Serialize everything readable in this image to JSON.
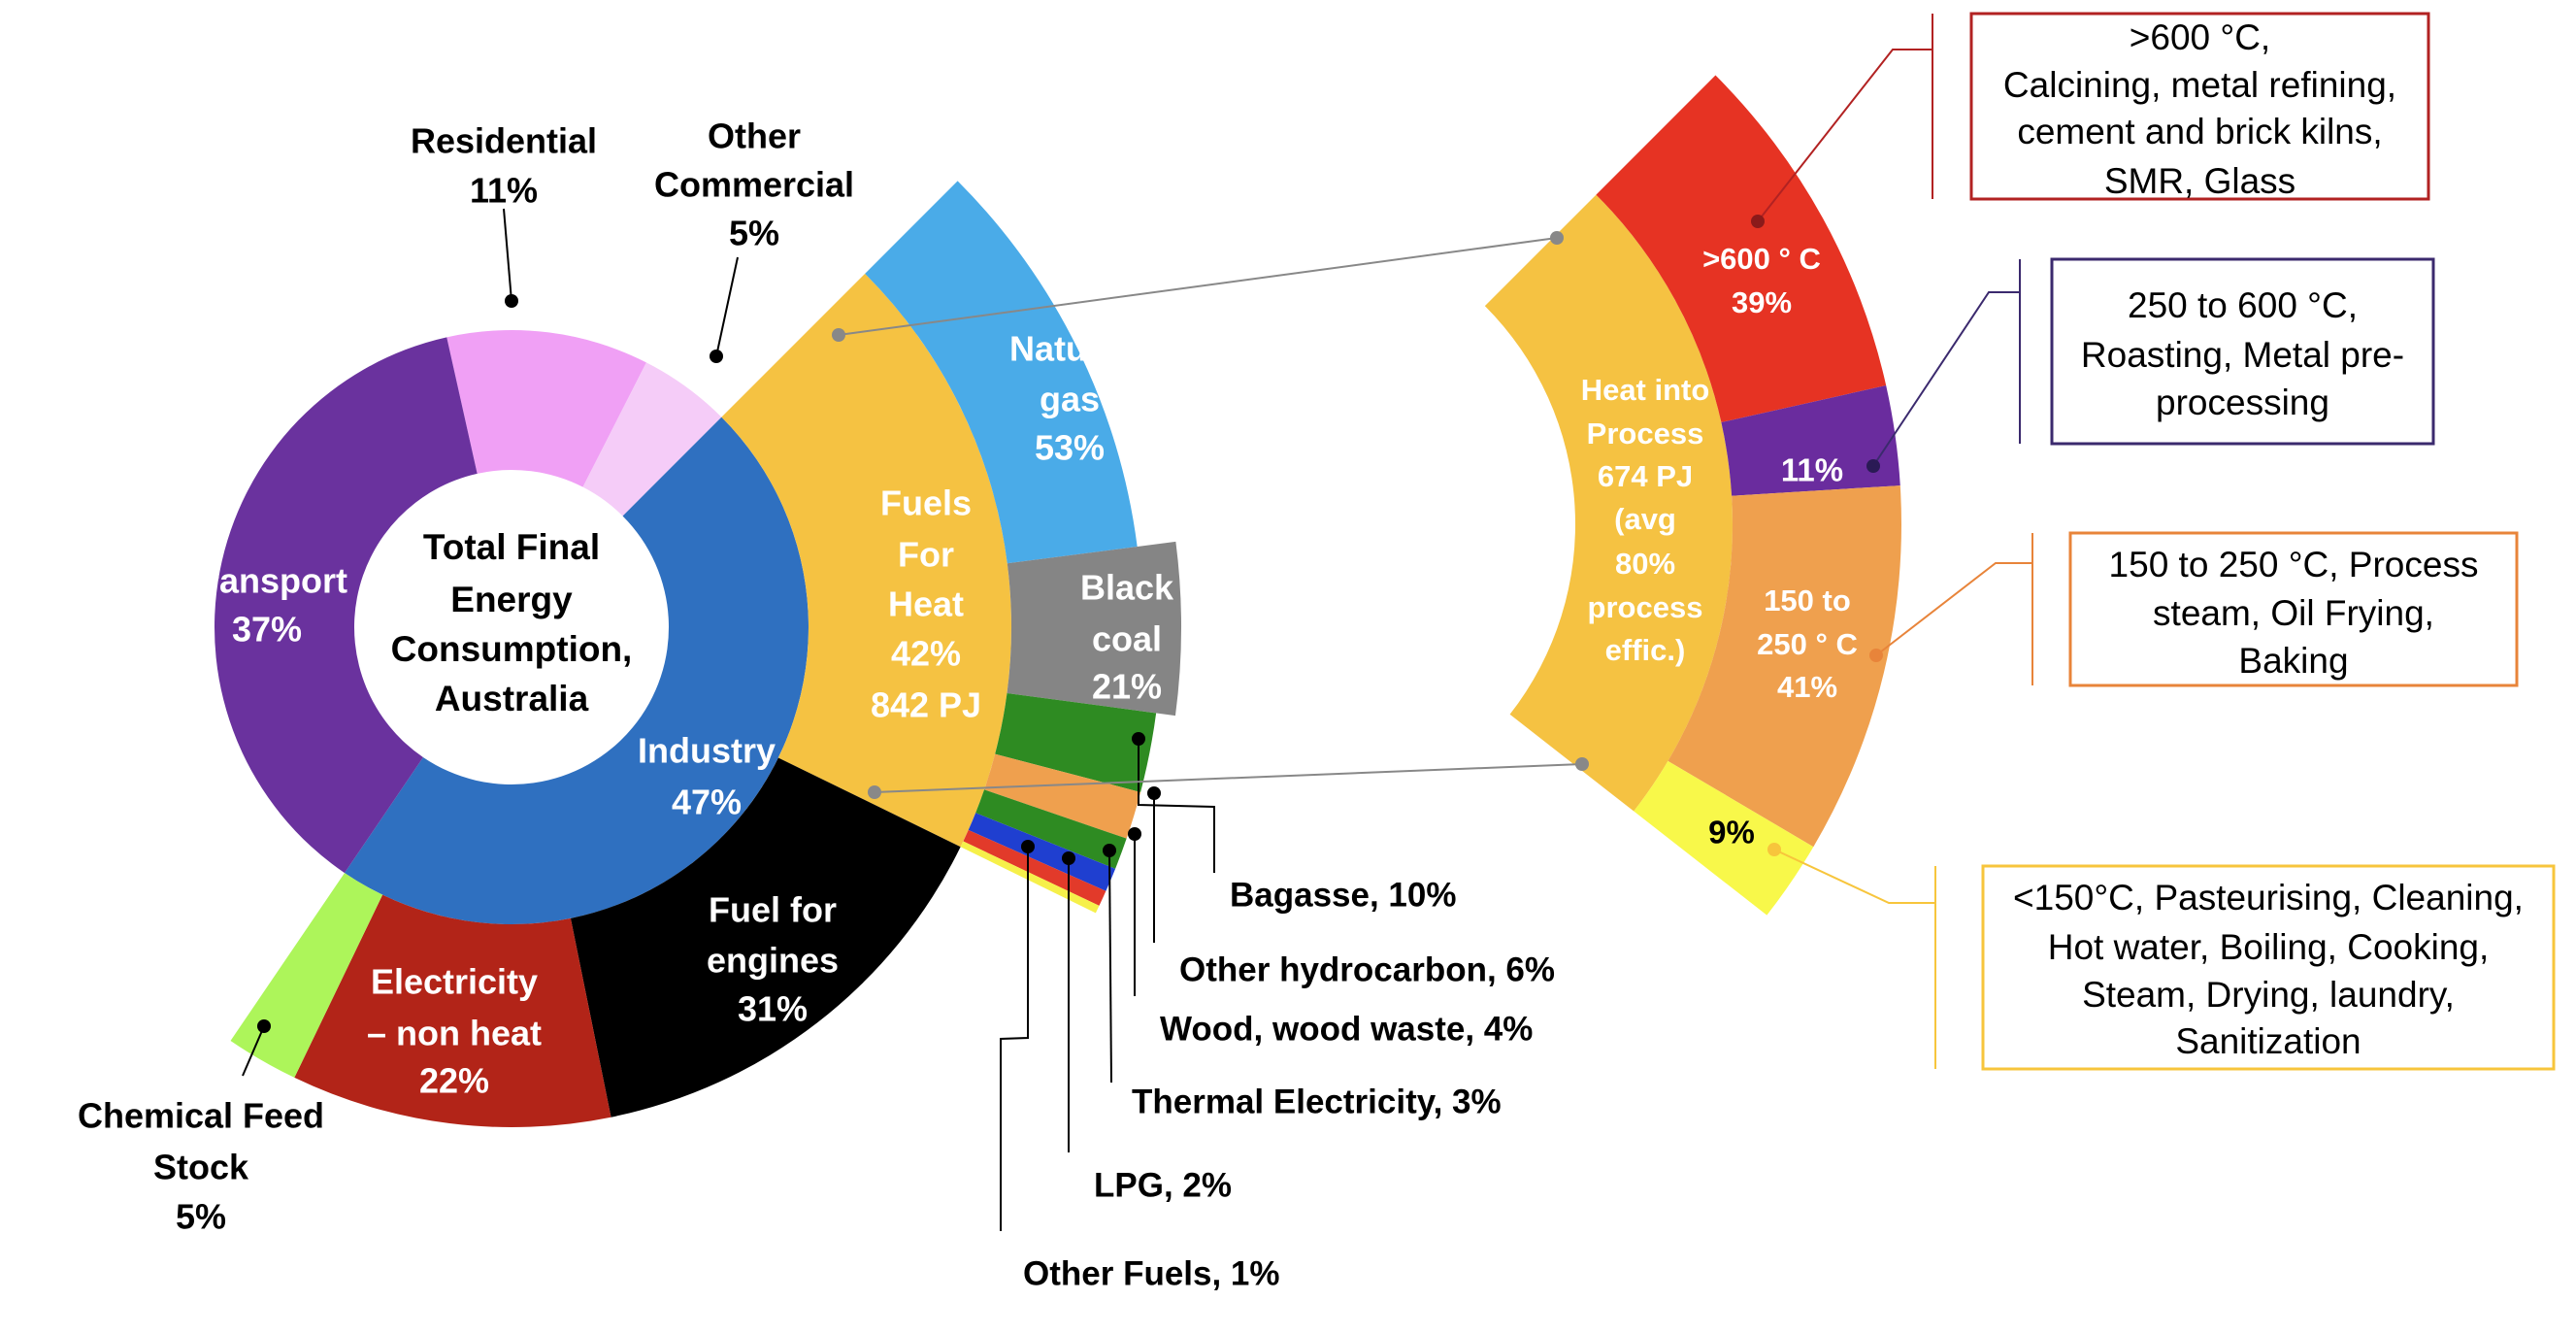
{
  "chart_data": {
    "type": "sunburst",
    "center_label": [
      "Total  Final",
      "Energy",
      "Consumption,",
      "Australia"
    ],
    "unit": "% of parent",
    "sectors": [
      {
        "name": "Residential",
        "value": 11,
        "color": "#F0A0F5",
        "label_lines": [
          "Residential",
          "11%"
        ]
      },
      {
        "name": "Other Commercial",
        "value": 5,
        "color": "#F5CCF8",
        "label_lines": [
          "Other",
          "Commercial",
          "5%"
        ]
      },
      {
        "name": "Industry",
        "value": 47,
        "color": "#2F70C0",
        "label_lines": [
          "Industry",
          "47%"
        ],
        "children": [
          {
            "name": "Fuels For Heat",
            "value": 42,
            "energy": "842 PJ",
            "color": "#F5C242",
            "label_lines": [
              "Fuels",
              "For",
              "Heat",
              "42%",
              "842 PJ"
            ],
            "children": [
              {
                "name": "Natural gas",
                "value": 53,
                "color": "#4AABE8",
                "label_lines": [
                  "Natural",
                  "gas",
                  "53%"
                ]
              },
              {
                "name": "Black coal",
                "value": 21,
                "color": "#858585",
                "label_lines": [
                  "Black",
                  "coal",
                  "21%"
                ]
              },
              {
                "name": "Bagasse",
                "value": 10,
                "color": "#2E8B22",
                "label_lines": [
                  "Bagasse, 10%"
                ]
              },
              {
                "name": "Other hydrocarbon",
                "value": 6,
                "color": "#EFA04E",
                "label_lines": [
                  "Other hydrocarbon, 6%"
                ]
              },
              {
                "name": "Wood, wood waste",
                "value": 4,
                "color": "#2E8B22",
                "label_lines": [
                  "Wood, wood waste, 4%"
                ]
              },
              {
                "name": "Thermal Electricity",
                "value": 3,
                "color": "#1F3FD0",
                "label_lines": [
                  "Thermal Electricity, 3%"
                ]
              },
              {
                "name": "LPG",
                "value": 2,
                "color": "#E23A2A",
                "label_lines": [
                  "LPG, 2%"
                ]
              },
              {
                "name": "Other Fuels",
                "value": 1,
                "color": "#F6F04A",
                "label_lines": [
                  "Other Fuels, 1%"
                ]
              }
            ]
          },
          {
            "name": "Fuel for engines",
            "value": 31,
            "color": "#000000",
            "label_lines": [
              "Fuel for",
              "engines",
              "31%"
            ]
          },
          {
            "name": "Electricity – non heat",
            "value": 22,
            "color": "#B22418",
            "label_lines": [
              "Electricity",
              "– non heat",
              "22%"
            ]
          },
          {
            "name": "Chemical Feed Stock",
            "value": 5,
            "color": "#ADF55A",
            "label_lines": [
              "Chemical Feed",
              "Stock",
              "5%"
            ]
          }
        ]
      },
      {
        "name": "Transport",
        "value": 37,
        "color": "#6A329E",
        "label_lines": [
          "Transport",
          "37%"
        ]
      }
    ],
    "heat_breakdown": {
      "name": "Heat into Process",
      "energy": "674 PJ",
      "color": "#F5C242",
      "label_lines": [
        "Heat into",
        "Process",
        "674 PJ",
        "(avg",
        "80%",
        "process",
        "effic.)"
      ],
      "segments": [
        {
          "name": ">600 °C",
          "value": 39,
          "color": "#E63323",
          "border": "#B22222",
          "label_lines": [
            ">600 ° C",
            "39%"
          ],
          "description": [
            ">600 °C,",
            "Calcining, metal refining,",
            "cement and brick kilns,",
            "SMR, Glass"
          ]
        },
        {
          "name": "250 to 600 °C",
          "value": 11,
          "color": "#6A2C9E",
          "border": "#3B2A6E",
          "label_lines": [
            "11%"
          ],
          "description": [
            "250 to 600 °C,",
            "Roasting, Metal pre-",
            "processing"
          ]
        },
        {
          "name": "150 to 250 °C",
          "value": 41,
          "color": "#EFA04E",
          "border": "#E8843A",
          "label_lines": [
            "150 to",
            "250 ° C",
            "41%"
          ],
          "description": [
            "150 to 250 °C, Process",
            "steam, Oil Frying,",
            "Baking"
          ]
        },
        {
          "name": "<150 °C",
          "value": 9,
          "color": "#F8F84A",
          "border": "#F7C53C",
          "label_lines": [
            "9%"
          ],
          "description": [
            "<150°C, Pasteurising, Cleaning,",
            "Hot water, Boiling, Cooking,",
            "Steam, Drying, laundry,",
            "Sanitization"
          ]
        }
      ]
    }
  }
}
